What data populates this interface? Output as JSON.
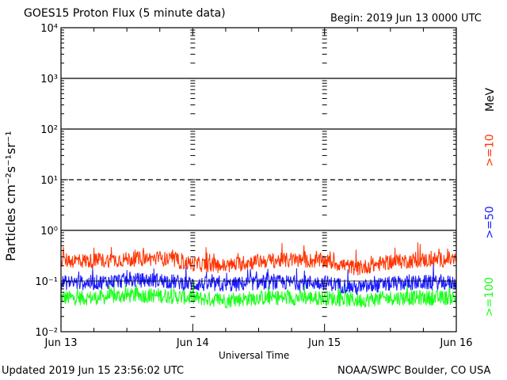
{
  "header": {
    "title": "GOES15 Proton Flux (5 minute data)",
    "begin": "Begin: 2019 Jun 13 0000 UTC"
  },
  "footer": {
    "updated": "Updated 2019 Jun 15 23:56:02 UTC",
    "credit": "NOAA/SWPC Boulder, CO USA"
  },
  "colors": {
    "ge10": "#ff3300",
    "ge50": "#1a1aff",
    "ge100": "#19ff19"
  },
  "chart_data": {
    "type": "line",
    "title": "GOES15 Proton Flux (5 minute data)",
    "xlabel": "Universal Time",
    "ylabel": "Particles cm⁻²s⁻¹sr⁻¹",
    "yscale": "log",
    "ylim": [
      0.01,
      10000
    ],
    "ytick_labels": [
      "10⁻²",
      "10⁻¹",
      "10⁰",
      "10¹",
      "10²",
      "10³",
      "10⁴"
    ],
    "xlim": [
      "2019-06-13T00:00",
      "2019-06-16T00:00"
    ],
    "xtick_labels": [
      "Jun 13",
      "Jun 14",
      "Jun 15",
      "Jun 16"
    ],
    "right_axis_unit": "MeV",
    "reference_lines": [
      1,
      10,
      100,
      1000
    ],
    "series": [
      {
        "name": ">=10",
        "color": "#ff3300",
        "x": [
          "2019-06-13T00:00",
          "2019-06-13T06:00",
          "2019-06-13T12:00",
          "2019-06-13T18:00",
          "2019-06-14T00:00",
          "2019-06-14T06:00",
          "2019-06-14T12:00",
          "2019-06-14T18:00",
          "2019-06-15T00:00",
          "2019-06-15T06:00",
          "2019-06-15T12:00",
          "2019-06-15T18:00",
          "2019-06-16T00:00"
        ],
        "values": [
          0.25,
          0.24,
          0.26,
          0.27,
          0.21,
          0.19,
          0.24,
          0.25,
          0.24,
          0.17,
          0.23,
          0.25,
          0.26
        ]
      },
      {
        "name": ">=50",
        "color": "#1a1aff",
        "x": [
          "2019-06-13T00:00",
          "2019-06-13T06:00",
          "2019-06-13T12:00",
          "2019-06-13T18:00",
          "2019-06-14T00:00",
          "2019-06-14T06:00",
          "2019-06-14T12:00",
          "2019-06-14T18:00",
          "2019-06-15T00:00",
          "2019-06-15T06:00",
          "2019-06-15T12:00",
          "2019-06-15T18:00",
          "2019-06-16T00:00"
        ],
        "values": [
          0.09,
          0.09,
          0.1,
          0.1,
          0.085,
          0.08,
          0.09,
          0.09,
          0.09,
          0.07,
          0.085,
          0.09,
          0.09
        ]
      },
      {
        "name": ">=100",
        "color": "#19ff19",
        "x": [
          "2019-06-13T00:00",
          "2019-06-13T06:00",
          "2019-06-13T12:00",
          "2019-06-13T18:00",
          "2019-06-14T00:00",
          "2019-06-14T06:00",
          "2019-06-14T12:00",
          "2019-06-14T18:00",
          "2019-06-15T00:00",
          "2019-06-15T06:00",
          "2019-06-15T12:00",
          "2019-06-15T18:00",
          "2019-06-16T00:00"
        ],
        "values": [
          0.045,
          0.045,
          0.05,
          0.05,
          0.045,
          0.04,
          0.045,
          0.045,
          0.045,
          0.04,
          0.045,
          0.045,
          0.045
        ]
      }
    ]
  }
}
